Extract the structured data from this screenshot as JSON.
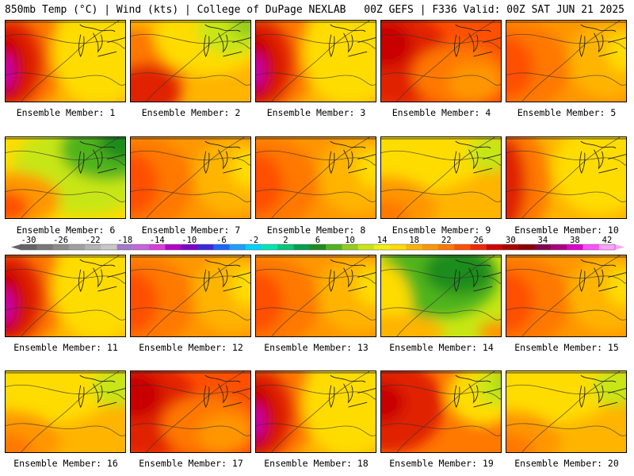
{
  "header": {
    "left": "850mb Temp (°C) | Wind (kts) | College of DuPage NEXLAB",
    "right": "00Z GEFS | F336 Valid: 00Z SAT JUN 21 2025"
  },
  "color_scale": {
    "tick_labels": [
      "-30",
      "-26",
      "-22",
      "-18",
      "-14",
      "-10",
      "-6",
      "-2",
      "2",
      "6",
      "10",
      "14",
      "18",
      "22",
      "26",
      "30",
      "34",
      "38",
      "42"
    ],
    "colors": [
      "#646464",
      "#787878",
      "#8c8c8c",
      "#a0a0a0",
      "#b4b4b4",
      "#c8c8c8",
      "#a478cc",
      "#c864dc",
      "#dc3cdc",
      "#b400c8",
      "#7d00c8",
      "#3c28dc",
      "#1e64ff",
      "#1ea0ff",
      "#00d2ff",
      "#00e6b4",
      "#00c878",
      "#00a050",
      "#1e8c1e",
      "#50b41e",
      "#96cd1e",
      "#c8e614",
      "#f0f014",
      "#ffdc00",
      "#ffb400",
      "#ff9600",
      "#ff7800",
      "#ff5000",
      "#f02800",
      "#d20000",
      "#aa0000",
      "#8c0000",
      "#820050",
      "#aa0082",
      "#dc00c8",
      "#ff50ff",
      "#ffa0ff"
    ]
  },
  "members": [
    {
      "label": "Ensemble Member: 1",
      "pattern": "hot-west"
    },
    {
      "label": "Ensemble Member: 2",
      "pattern": "cool-ne"
    },
    {
      "label": "Ensemble Member: 3",
      "pattern": "hot-west"
    },
    {
      "label": "Ensemble Member: 4",
      "pattern": "red-wide"
    },
    {
      "label": "Ensemble Member: 5",
      "pattern": "orange"
    },
    {
      "label": "Ensemble Member: 6",
      "pattern": "cold-ne"
    },
    {
      "label": "Ensemble Member: 7",
      "pattern": "orange"
    },
    {
      "label": "Ensemble Member: 8",
      "pattern": "orange"
    },
    {
      "label": "Ensemble Member: 9",
      "pattern": "mild"
    },
    {
      "label": "Ensemble Member: 10",
      "pattern": "west-red"
    },
    {
      "label": "Ensemble Member: 11",
      "pattern": "hot-west"
    },
    {
      "label": "Ensemble Member: 12",
      "pattern": "orange"
    },
    {
      "label": "Ensemble Member: 13",
      "pattern": "orange"
    },
    {
      "label": "Ensemble Member: 14",
      "pattern": "green"
    },
    {
      "label": "Ensemble Member: 15",
      "pattern": "orange"
    },
    {
      "label": "Ensemble Member: 16",
      "pattern": "mild"
    },
    {
      "label": "Ensemble Member: 17",
      "pattern": "red-wide"
    },
    {
      "label": "Ensemble Member: 18",
      "pattern": "hot-west"
    },
    {
      "label": "Ensemble Member: 19",
      "pattern": "red-green"
    },
    {
      "label": "Ensemble Member: 20",
      "pattern": "mild"
    }
  ]
}
